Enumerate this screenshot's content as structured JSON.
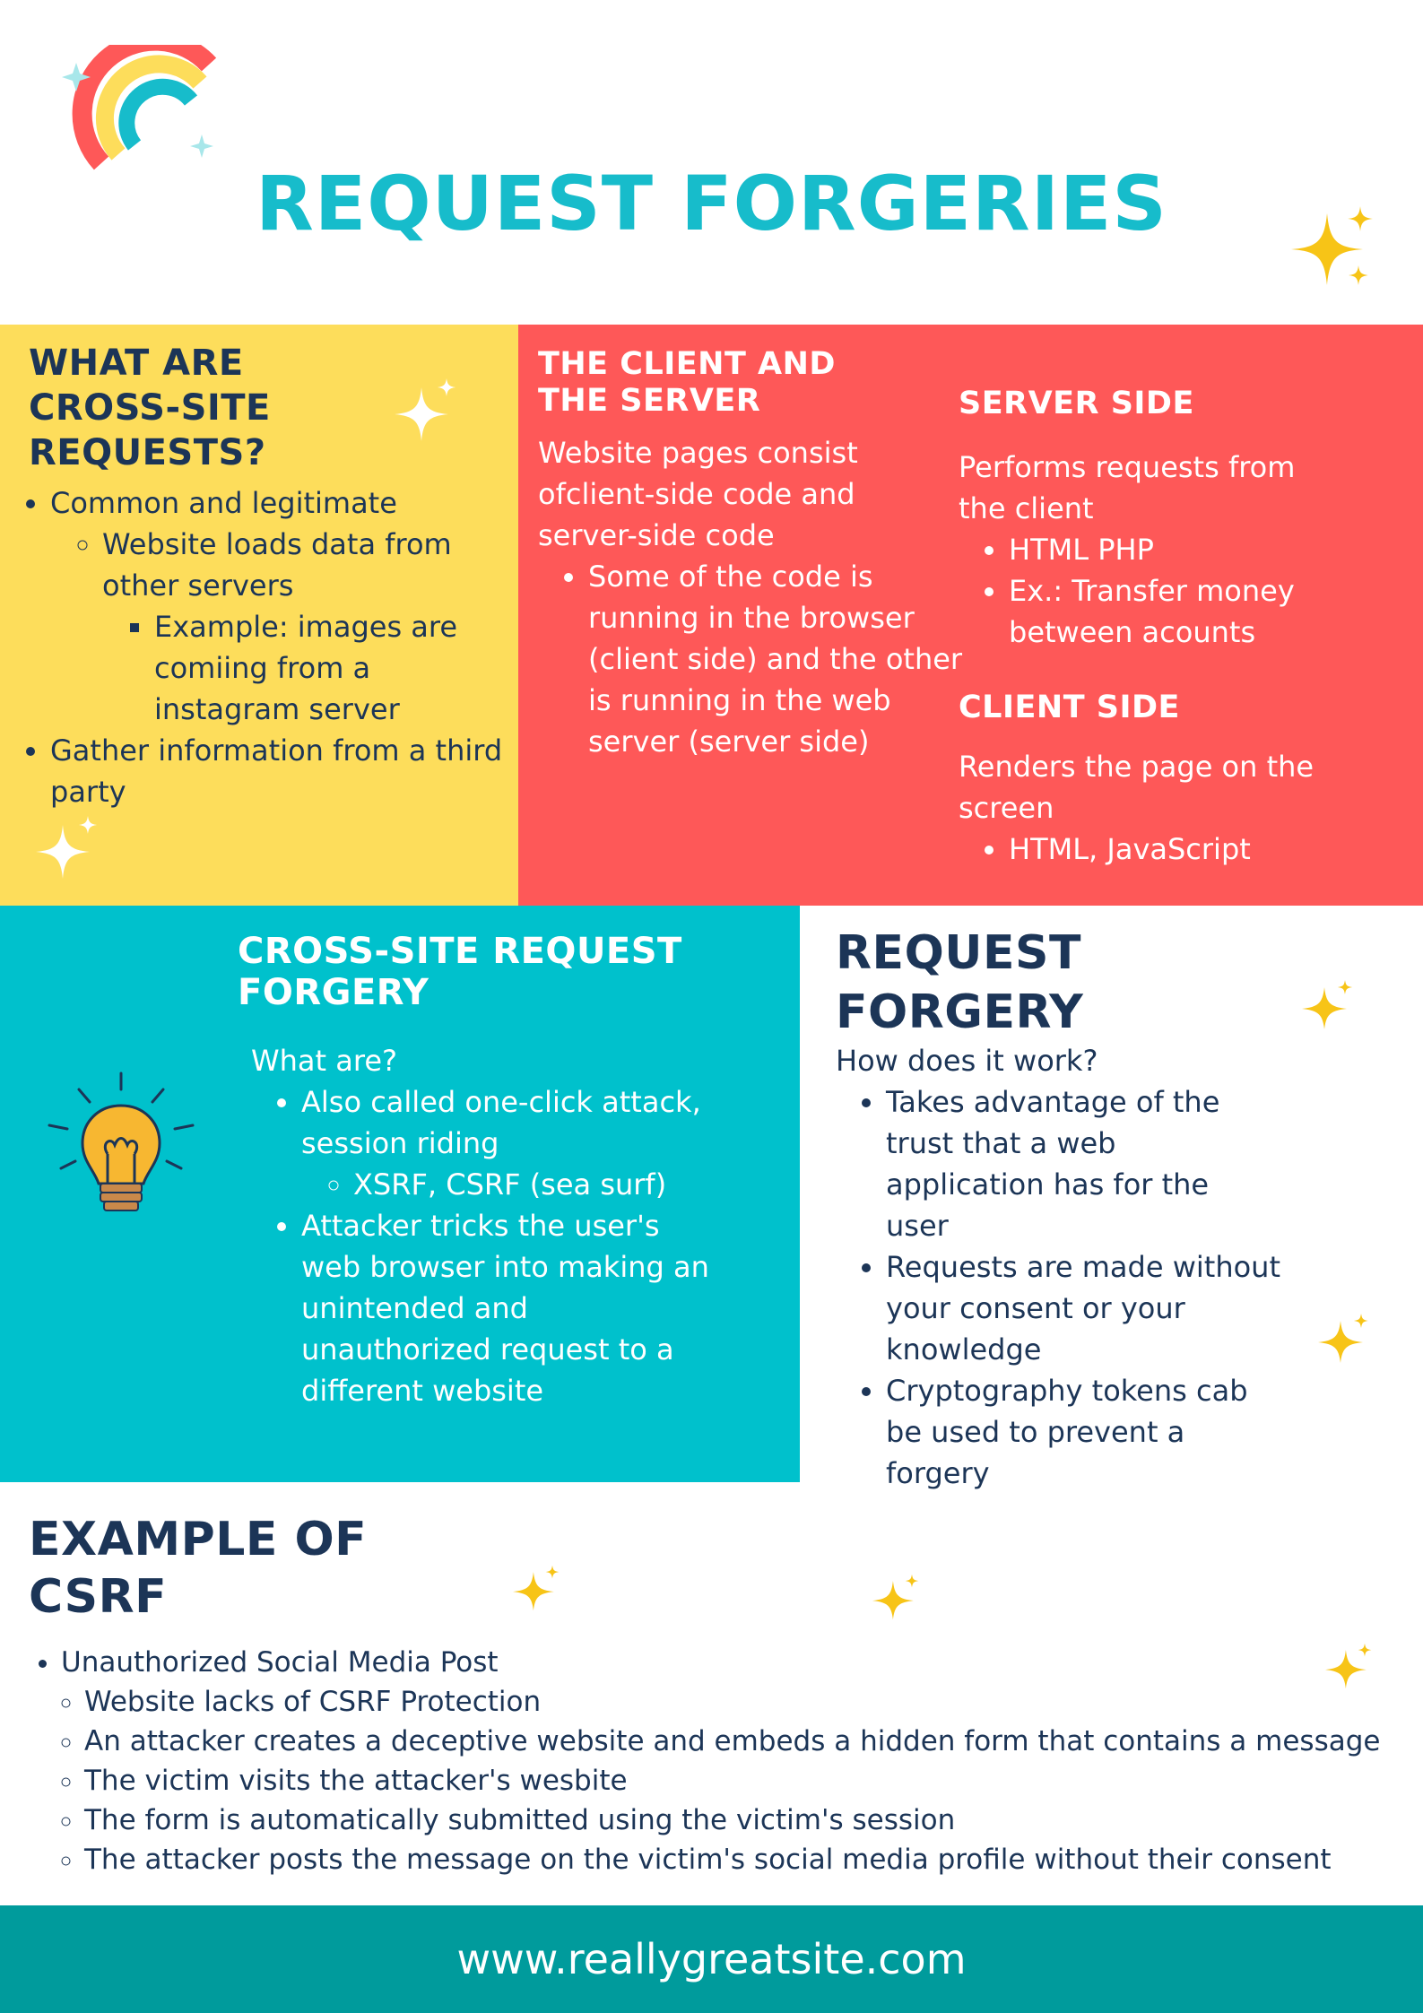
{
  "title": "REQUEST FORGERIES",
  "colors": {
    "teal": "#17bccb",
    "yellow": "#fddd5b",
    "coral": "#fe5858",
    "cyan": "#00c1cc",
    "navy": "#1c3557",
    "footer": "#009b9c"
  },
  "section1": {
    "heading": "WHAT ARE CROSS-SITE REQUESTS?",
    "items": [
      {
        "text": "Common and legitimate",
        "sub": [
          {
            "text": "Website loads data from other servers",
            "sub": [
              {
                "text": "Example: images are comiing from a instagram server"
              }
            ]
          }
        ]
      },
      {
        "text": "Gather information from a third party"
      }
    ]
  },
  "section2": {
    "heading": "THE CLIENT AND THE SERVER",
    "intro": "Website pages consist ofclient-side code and server-side code",
    "items": [
      "Some of the code is running in the browser (client side) and the other is running in the web server (server side)"
    ],
    "server_heading": "SERVER SIDE",
    "server_text": "Performs requests from the client",
    "server_items": [
      "HTML PHP",
      "Ex.: Transfer money between acounts"
    ],
    "client_heading": "CLIENT SIDE",
    "client_text": "Renders the page on the screen",
    "client_items": [
      "HTML, JavaScript"
    ]
  },
  "section3": {
    "heading": "CROSS-SITE REQUEST FORGERY",
    "intro": "What are?",
    "item1": "Also called one-click attack, session riding",
    "item1_sub": "XSRF, CSRF (sea surf)",
    "item2": "Attacker tricks the user's web browser into making an unintended and unauthorized request to a different website"
  },
  "section4": {
    "heading": "REQUEST FORGERY",
    "intro": "How does it work?",
    "items": [
      "Takes advantage of the trust that a web application has for the user",
      "Requests are made without your consent or your knowledge",
      "Cryptography tokens cab be used to prevent a forgery"
    ]
  },
  "section5": {
    "heading": "EXAMPLE OF CSRF",
    "item": "Unauthorized Social Media Post",
    "sub": [
      "Website lacks of CSRF Protection",
      "An attacker creates a deceptive website and embeds a hidden form that contains a message",
      "The victim visits the attacker's wesbite",
      "The form is automatically submitted using the victim's session",
      "The attacker posts the message on the victim's social media profile without their consent"
    ]
  },
  "footer": {
    "url": "www.reallygreatsite.com"
  },
  "icons": {
    "rainbow": "rainbow-icon",
    "lightbulb": "lightbulb-icon",
    "sparkle": "sparkle-icon"
  }
}
